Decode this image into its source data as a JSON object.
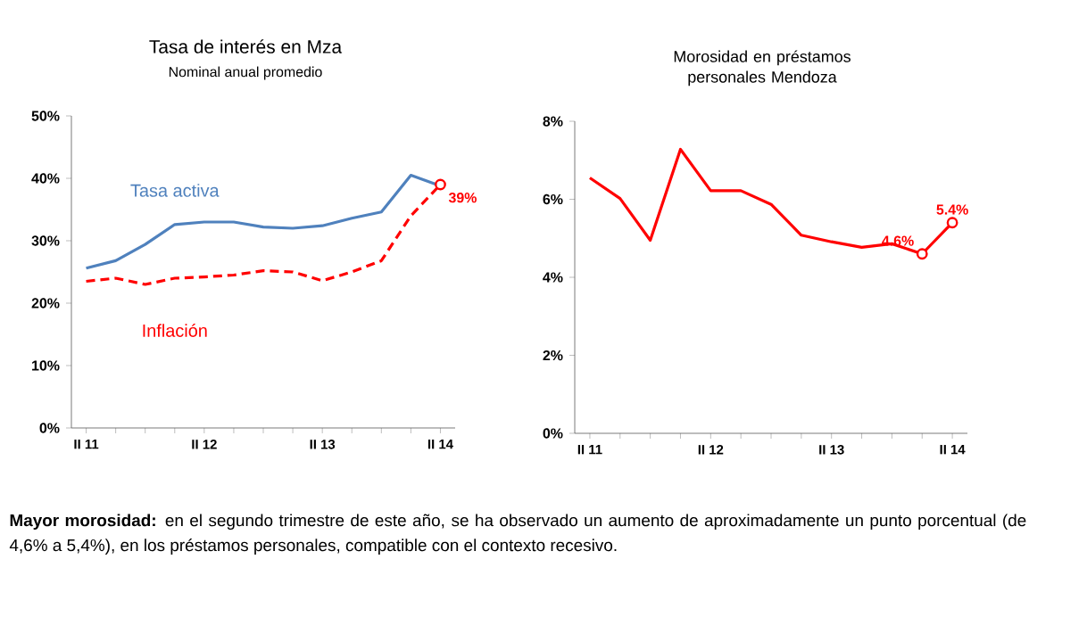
{
  "chart_data": [
    {
      "type": "line",
      "title": "Tasa de interés en Mza",
      "subtitle": "Nominal anual promedio",
      "categories": [
        "II 11",
        null,
        null,
        null,
        "II 12",
        null,
        null,
        null,
        "II 13",
        null,
        null,
        null,
        "II 14"
      ],
      "series": [
        {
          "name": "Tasa activa",
          "color": "#4f81bd",
          "line_style": "solid",
          "values": [
            25.6,
            26.8,
            29.4,
            32.6,
            33,
            33,
            32.2,
            32,
            32.4,
            33.6,
            34.6,
            40.5,
            38.8
          ]
        },
        {
          "name": "Inflación",
          "color": "#ff0000",
          "line_style": "dashed",
          "values": [
            23.5,
            24,
            23,
            24,
            24.2,
            24.5,
            25.2,
            25,
            23.6,
            25,
            26.8,
            34,
            39
          ],
          "value_labels": [
            null,
            null,
            null,
            null,
            null,
            null,
            null,
            null,
            null,
            null,
            null,
            null,
            "39%"
          ]
        }
      ],
      "ylim": [
        0,
        50
      ],
      "yticks": [
        {
          "value": 0,
          "label": "0%"
        },
        {
          "value": 10,
          "label": "10%"
        },
        {
          "value": 20,
          "label": "20%"
        },
        {
          "value": 30,
          "label": "30%"
        },
        {
          "value": 40,
          "label": "40%"
        },
        {
          "value": 50,
          "label": "50%"
        }
      ],
      "grid": false,
      "legend": false,
      "annotations": [
        "**Mayor morosidad:** en el segundo trimestre de este año, se ha observado un aumento de aproximadamente un punto porcentual (de 4,6% a 5,4%), en los préstamos personales, compatible con el contexto recesivo."
      ]
    },
    {
      "type": "line",
      "title": "Morosidad en préstamos personales Mendoza",
      "categories": [
        "II 11",
        null,
        null,
        null,
        "II 12",
        null,
        null,
        null,
        "II 13",
        null,
        null,
        null,
        "II 14"
      ],
      "series": [
        {
          "color": "#ff0000",
          "line_style": "solid",
          "values": [
            6.55,
            6.02,
            4.95,
            7.28,
            6.22,
            6.22,
            5.87,
            5.08,
            4.91,
            4.77,
            4.86,
            4.6,
            5.4
          ],
          "value_labels": [
            null,
            null,
            null,
            null,
            null,
            null,
            null,
            null,
            null,
            null,
            null,
            "4.6%",
            "5.4%"
          ]
        }
      ],
      "ylim": [
        0,
        8
      ],
      "yticks": [
        {
          "value": 0,
          "label": "0%"
        },
        {
          "value": 2,
          "label": "2%"
        },
        {
          "value": 4,
          "label": "4%"
        },
        {
          "value": 6,
          "label": "6%"
        },
        {
          "value": 8,
          "label": "8%"
        }
      ],
      "grid": false,
      "legend": false
    }
  ]
}
